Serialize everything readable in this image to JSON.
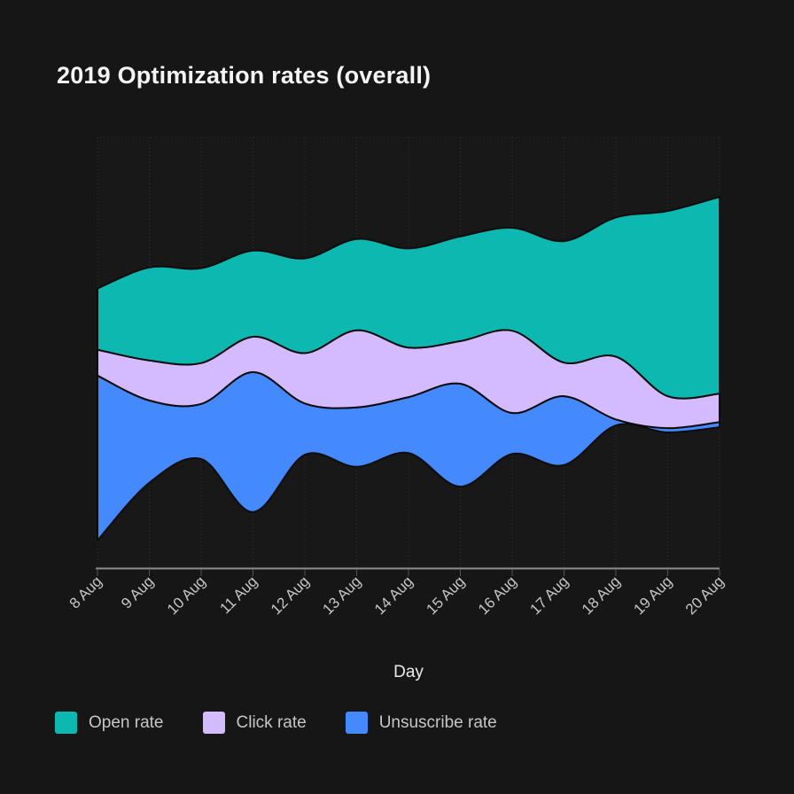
{
  "page": {
    "background": "#161616"
  },
  "header": {
    "title": "2019 Optimization rates (overall)"
  },
  "chart_data": {
    "type": "area",
    "variant": "streamgraph",
    "title": "2019 Optimization rates (overall)",
    "xlabel": "Day",
    "ylabel": "",
    "categories": [
      "8 Aug",
      "9 Aug",
      "10 Aug",
      "11 Aug",
      "12 Aug",
      "13 Aug",
      "14 Aug",
      "15 Aug",
      "16 Aug",
      "17 Aug",
      "18 Aug",
      "19 Aug",
      "20 Aug"
    ],
    "series": [
      {
        "name": "Open rate",
        "color": "#0cb8b0",
        "values": [
          14.2,
          21.6,
          22.0,
          20.0,
          22.0,
          21.2,
          23.0,
          24.3,
          23.9,
          28.2,
          32.3,
          43.0,
          45.7
        ]
      },
      {
        "name": "Click rate",
        "color": "#d4bbff",
        "values": [
          6.0,
          9.3,
          9.5,
          8.2,
          11.7,
          17.9,
          11.5,
          9.9,
          19.1,
          7.8,
          14.6,
          7.4,
          6.6
        ]
      },
      {
        "name": "Unsuscribe rate",
        "color": "#4589ff",
        "values": [
          38.3,
          19.1,
          12.8,
          32.5,
          11.9,
          13.8,
          13.0,
          23.9,
          9.5,
          16.0,
          1.4,
          1.0,
          1.2
        ]
      }
    ],
    "baseline_offsets_pct": [
      93.6,
      80.2,
      74.7,
      87.0,
      73.7,
      76.5,
      73.3,
      81.1,
      73.5,
      76.1,
      66.9,
      68.5,
      67.3
    ],
    "value_unit": "percent of plot height (no y-axis shown)",
    "stack_order_top_to_bottom": [
      "Open rate",
      "Click rate",
      "Unsuscribe rate"
    ],
    "axis": {
      "x_ticks": 13,
      "grid": "vertical dotted",
      "y_axis_labels": false,
      "x_label_rotation_deg": -45
    },
    "legend_position": "bottom-left",
    "colors": {
      "band_stroke": "#0d0d0d",
      "grid_line": "#303030",
      "axis_line": "#8d8d8d",
      "tick_mark": "#525252",
      "tick_label": "#c6c6c6",
      "axis_title": "#eaeaea",
      "plot_background": "#181818"
    }
  }
}
